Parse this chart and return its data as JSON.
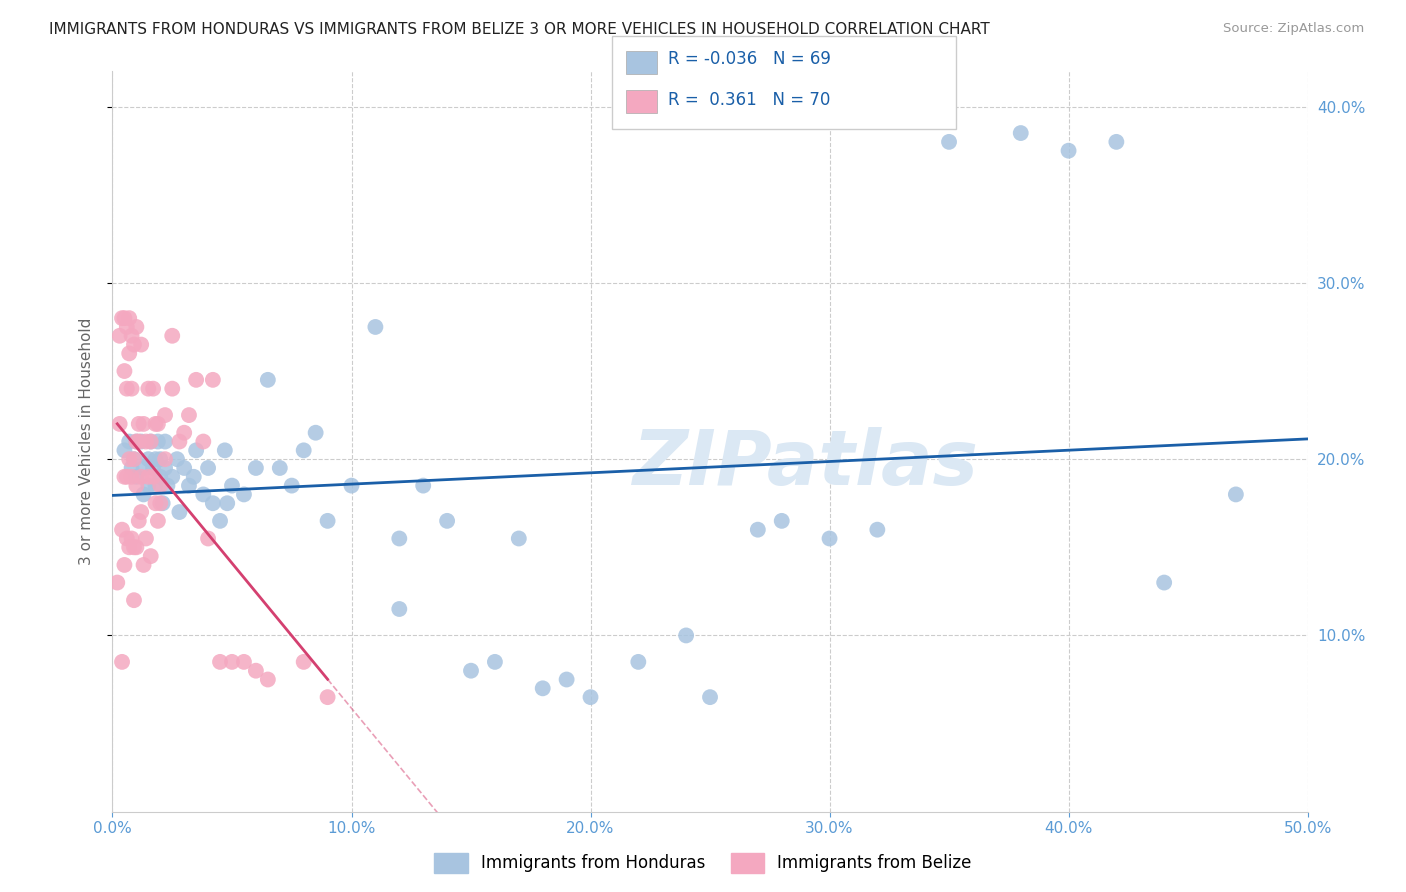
{
  "title": "IMMIGRANTS FROM HONDURAS VS IMMIGRANTS FROM BELIZE 3 OR MORE VEHICLES IN HOUSEHOLD CORRELATION CHART",
  "source": "Source: ZipAtlas.com",
  "ylabel": "3 or more Vehicles in Household",
  "xlim": [
    0.0,
    0.5
  ],
  "ylim": [
    0.0,
    0.42
  ],
  "xticks": [
    0.0,
    0.1,
    0.2,
    0.3,
    0.4,
    0.5
  ],
  "yticks": [
    0.1,
    0.2,
    0.3,
    0.4
  ],
  "xtick_labels": [
    "0.0%",
    "10.0%",
    "20.0%",
    "30.0%",
    "40.0%",
    "50.0%"
  ],
  "ytick_labels": [
    "10.0%",
    "20.0%",
    "30.0%",
    "40.0%"
  ],
  "legend_labels": [
    "Immigrants from Honduras",
    "Immigrants from Belize"
  ],
  "R_honduras": -0.036,
  "N_honduras": 69,
  "R_belize": 0.361,
  "N_belize": 70,
  "color_honduras": "#a8c4e0",
  "color_belize": "#f4a8c0",
  "trendline_honduras_color": "#1a5fa8",
  "trendline_belize_color": "#d44070",
  "watermark": "ZIPatlas",
  "background_color": "#ffffff",
  "honduras_x": [
    0.005,
    0.007,
    0.008,
    0.009,
    0.01,
    0.01,
    0.012,
    0.013,
    0.013,
    0.015,
    0.015,
    0.016,
    0.017,
    0.018,
    0.018,
    0.019,
    0.02,
    0.02,
    0.021,
    0.022,
    0.022,
    0.023,
    0.025,
    0.027,
    0.028,
    0.03,
    0.032,
    0.034,
    0.035,
    0.038,
    0.04,
    0.042,
    0.045,
    0.047,
    0.048,
    0.05,
    0.055,
    0.06,
    0.065,
    0.07,
    0.075,
    0.08,
    0.085,
    0.09,
    0.1,
    0.11,
    0.12,
    0.12,
    0.13,
    0.14,
    0.15,
    0.16,
    0.17,
    0.18,
    0.19,
    0.2,
    0.22,
    0.24,
    0.25,
    0.27,
    0.28,
    0.3,
    0.32,
    0.35,
    0.38,
    0.4,
    0.42,
    0.44,
    0.47
  ],
  "honduras_y": [
    0.205,
    0.21,
    0.195,
    0.2,
    0.19,
    0.21,
    0.21,
    0.18,
    0.195,
    0.2,
    0.185,
    0.21,
    0.195,
    0.185,
    0.2,
    0.21,
    0.19,
    0.2,
    0.175,
    0.195,
    0.21,
    0.185,
    0.19,
    0.2,
    0.17,
    0.195,
    0.185,
    0.19,
    0.205,
    0.18,
    0.195,
    0.175,
    0.165,
    0.205,
    0.175,
    0.185,
    0.18,
    0.195,
    0.245,
    0.195,
    0.185,
    0.205,
    0.215,
    0.165,
    0.185,
    0.275,
    0.115,
    0.155,
    0.185,
    0.165,
    0.08,
    0.085,
    0.155,
    0.07,
    0.075,
    0.065,
    0.085,
    0.1,
    0.065,
    0.16,
    0.165,
    0.155,
    0.16,
    0.38,
    0.385,
    0.375,
    0.38,
    0.13,
    0.18
  ],
  "belize_x": [
    0.002,
    0.003,
    0.003,
    0.004,
    0.004,
    0.004,
    0.005,
    0.005,
    0.005,
    0.005,
    0.006,
    0.006,
    0.006,
    0.006,
    0.007,
    0.007,
    0.007,
    0.007,
    0.008,
    0.008,
    0.008,
    0.008,
    0.009,
    0.009,
    0.009,
    0.009,
    0.01,
    0.01,
    0.01,
    0.01,
    0.011,
    0.011,
    0.011,
    0.012,
    0.012,
    0.012,
    0.013,
    0.013,
    0.014,
    0.014,
    0.015,
    0.015,
    0.016,
    0.016,
    0.017,
    0.017,
    0.018,
    0.018,
    0.019,
    0.019,
    0.02,
    0.02,
    0.022,
    0.022,
    0.025,
    0.025,
    0.028,
    0.03,
    0.032,
    0.035,
    0.038,
    0.04,
    0.042,
    0.045,
    0.05,
    0.055,
    0.06,
    0.065,
    0.08,
    0.09
  ],
  "belize_y": [
    0.13,
    0.27,
    0.22,
    0.085,
    0.28,
    0.16,
    0.14,
    0.25,
    0.19,
    0.28,
    0.155,
    0.19,
    0.24,
    0.275,
    0.15,
    0.2,
    0.26,
    0.28,
    0.155,
    0.19,
    0.24,
    0.27,
    0.12,
    0.15,
    0.2,
    0.265,
    0.15,
    0.185,
    0.21,
    0.275,
    0.165,
    0.21,
    0.22,
    0.17,
    0.19,
    0.265,
    0.14,
    0.22,
    0.155,
    0.21,
    0.19,
    0.24,
    0.145,
    0.21,
    0.19,
    0.24,
    0.175,
    0.22,
    0.165,
    0.22,
    0.175,
    0.185,
    0.225,
    0.2,
    0.24,
    0.27,
    0.21,
    0.215,
    0.225,
    0.245,
    0.21,
    0.155,
    0.245,
    0.085,
    0.085,
    0.085,
    0.08,
    0.075,
    0.085,
    0.065
  ]
}
